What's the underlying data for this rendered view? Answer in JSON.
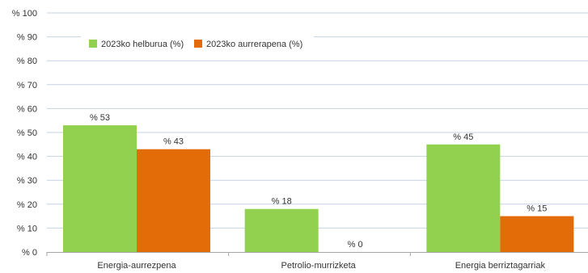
{
  "chart_data": {
    "type": "bar",
    "categories": [
      "Energia-aurrezpena",
      "Petrolio-murrizketa",
      "Energia berriztagarriak"
    ],
    "series": [
      {
        "name": "2023ko helburua (%)",
        "values": [
          53,
          18,
          45
        ],
        "color": "#92d050"
      },
      {
        "name": "2023ko aurrerapena (%)",
        "values": [
          43,
          0,
          15
        ],
        "color": "#e36c09"
      }
    ],
    "data_labels": [
      [
        "% 53",
        "% 18",
        "% 45"
      ],
      [
        "% 43",
        "% 0",
        "% 15"
      ]
    ],
    "y_ticks": [
      {
        "value": 0,
        "label": "% 0"
      },
      {
        "value": 10,
        "label": "% 10"
      },
      {
        "value": 20,
        "label": "% 20"
      },
      {
        "value": 30,
        "label": "% 30"
      },
      {
        "value": 40,
        "label": "% 40"
      },
      {
        "value": 50,
        "label": "% 50"
      },
      {
        "value": 60,
        "label": "% 60"
      },
      {
        "value": 70,
        "label": "% 70"
      },
      {
        "value": 80,
        "label": "% 80"
      },
      {
        "value": 90,
        "label": "% 90"
      },
      {
        "value": 100,
        "label": "% 100"
      }
    ],
    "ylim": [
      0,
      100
    ],
    "grid": true,
    "gridline_color": "#c5d3e3",
    "axis_color": "#a6a6a6",
    "legend_position": "top-left",
    "title": "",
    "xlabel": "",
    "ylabel": ""
  }
}
